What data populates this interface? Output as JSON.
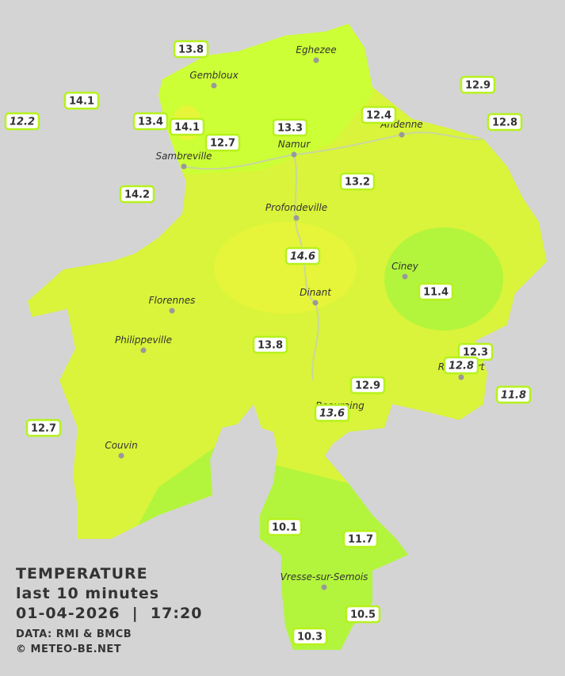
{
  "header": {
    "title": "TEMPERATURE",
    "period": "last 10 minutes",
    "timestamp": "01-04-2026  |  17:20",
    "source": "DATA: RMI & BMCB",
    "copyright": "© METEO-BE.NET"
  },
  "towns": [
    "Eghezee",
    "Gembloux",
    "Andenne",
    "Namur",
    "Sambreville",
    "Profondeville",
    "Ciney",
    "Dinant",
    "Florennes",
    "Philippeville",
    "Rochefort",
    "Beauraing",
    "Couvin",
    "Vresse-sur-Semois"
  ],
  "stations": [
    {
      "value": 13.8,
      "italic": false
    },
    {
      "value": 14.1,
      "italic": false
    },
    {
      "value": 12.2,
      "italic": true
    },
    {
      "value": 13.4,
      "italic": false
    },
    {
      "value": 14.1,
      "italic": false
    },
    {
      "value": 12.7,
      "italic": false
    },
    {
      "value": 13.3,
      "italic": false
    },
    {
      "value": 12.4,
      "italic": false
    },
    {
      "value": 12.9,
      "italic": false
    },
    {
      "value": 12.8,
      "italic": false
    },
    {
      "value": 14.2,
      "italic": false
    },
    {
      "value": 13.2,
      "italic": false
    },
    {
      "value": 14.6,
      "italic": true
    },
    {
      "value": 11.4,
      "italic": false
    },
    {
      "value": 13.8,
      "italic": false
    },
    {
      "value": 12.3,
      "italic": false
    },
    {
      "value": 12.8,
      "italic": true
    },
    {
      "value": 11.8,
      "italic": true
    },
    {
      "value": 12.9,
      "italic": false
    },
    {
      "value": 13.6,
      "italic": true
    },
    {
      "value": 12.7,
      "italic": false
    },
    {
      "value": 10.1,
      "italic": false
    },
    {
      "value": 11.7,
      "italic": false
    },
    {
      "value": 10.5,
      "italic": false
    },
    {
      "value": 10.3,
      "italic": false
    }
  ]
}
